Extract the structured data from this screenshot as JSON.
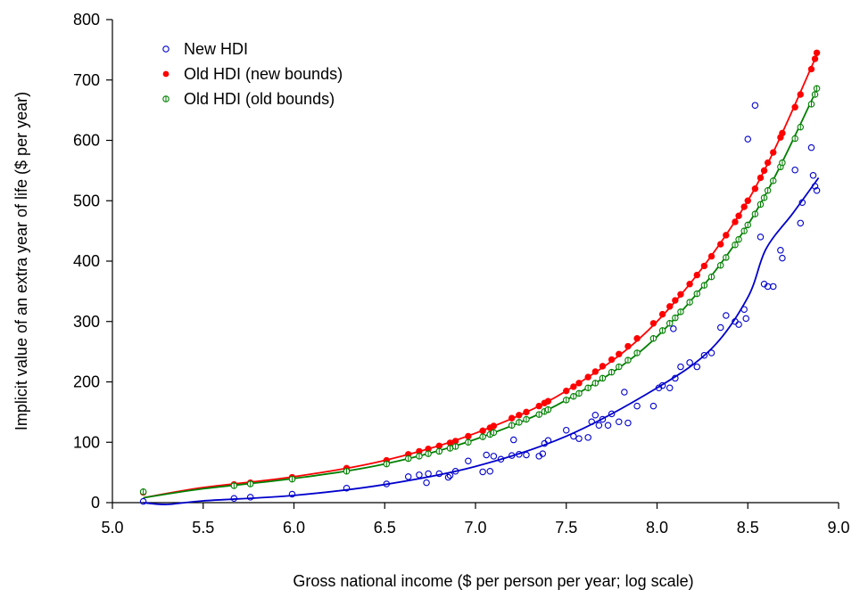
{
  "chart_data": {
    "type": "scatter",
    "title": "",
    "xlabel": "Gross national income ($ per person per year; log scale)",
    "ylabel": "Implicit value of an extra year of life ($ per year)",
    "xlim": [
      5.0,
      9.0
    ],
    "ylim": [
      0,
      800
    ],
    "xticks": [
      "5.0",
      "5.5",
      "6.0",
      "6.5",
      "7.0",
      "7.5",
      "8.0",
      "8.5",
      "9.0"
    ],
    "yticks": [
      "0",
      "100",
      "200",
      "300",
      "400",
      "500",
      "600",
      "700",
      "800"
    ],
    "grid": false,
    "legend_position": "top-left",
    "series": [
      {
        "name": "New HDI",
        "color": "#0000cc",
        "marker": "open-circle",
        "points": [
          [
            5.17,
            2
          ],
          [
            5.67,
            7
          ],
          [
            5.76,
            9
          ],
          [
            5.99,
            14
          ],
          [
            6.29,
            24
          ],
          [
            6.51,
            31
          ],
          [
            6.63,
            43
          ],
          [
            6.69,
            46
          ],
          [
            6.73,
            33
          ],
          [
            6.74,
            48
          ],
          [
            6.8,
            48
          ],
          [
            6.85,
            42
          ],
          [
            6.86,
            45
          ],
          [
            6.89,
            52
          ],
          [
            6.96,
            69
          ],
          [
            7.04,
            51
          ],
          [
            7.06,
            79
          ],
          [
            7.08,
            52
          ],
          [
            7.1,
            77
          ],
          [
            7.14,
            72
          ],
          [
            7.2,
            78
          ],
          [
            7.21,
            104
          ],
          [
            7.24,
            80
          ],
          [
            7.28,
            79
          ],
          [
            7.35,
            77
          ],
          [
            7.37,
            81
          ],
          [
            7.38,
            98
          ],
          [
            7.4,
            103
          ],
          [
            7.5,
            120
          ],
          [
            7.54,
            110
          ],
          [
            7.57,
            106
          ],
          [
            7.62,
            108
          ],
          [
            7.64,
            134
          ],
          [
            7.66,
            145
          ],
          [
            7.68,
            128
          ],
          [
            7.7,
            138
          ],
          [
            7.73,
            128
          ],
          [
            7.75,
            147
          ],
          [
            7.79,
            134
          ],
          [
            7.82,
            183
          ],
          [
            7.84,
            132
          ],
          [
            7.89,
            160
          ],
          [
            7.98,
            160
          ],
          [
            8.01,
            190
          ],
          [
            8.03,
            194
          ],
          [
            8.07,
            190
          ],
          [
            8.09,
            288
          ],
          [
            8.1,
            206
          ],
          [
            8.13,
            225
          ],
          [
            8.18,
            232
          ],
          [
            8.22,
            225
          ],
          [
            8.26,
            244
          ],
          [
            8.3,
            248
          ],
          [
            8.35,
            290
          ],
          [
            8.38,
            310
          ],
          [
            8.43,
            300
          ],
          [
            8.45,
            295
          ],
          [
            8.48,
            320
          ],
          [
            8.49,
            305
          ],
          [
            8.5,
            602
          ],
          [
            8.54,
            658
          ],
          [
            8.57,
            440
          ],
          [
            8.59,
            362
          ],
          [
            8.61,
            358
          ],
          [
            8.64,
            358
          ],
          [
            8.68,
            418
          ],
          [
            8.69,
            405
          ],
          [
            8.76,
            551
          ],
          [
            8.79,
            463
          ],
          [
            8.8,
            497
          ],
          [
            8.85,
            588
          ],
          [
            8.86,
            542
          ],
          [
            8.87,
            524
          ],
          [
            8.88,
            517
          ]
        ],
        "fit": [
          [
            5.17,
            0
          ],
          [
            5.3,
            -3
          ],
          [
            5.5,
            3
          ],
          [
            6.0,
            12
          ],
          [
            6.5,
            30
          ],
          [
            7.0,
            60
          ],
          [
            7.5,
            110
          ],
          [
            8.0,
            190
          ],
          [
            8.3,
            255
          ],
          [
            8.5,
            340
          ],
          [
            8.6,
            420
          ],
          [
            8.75,
            480
          ],
          [
            8.89,
            538
          ]
        ]
      },
      {
        "name": "Old HDI (new bounds)",
        "color": "#ff0000",
        "marker": "filled-circle",
        "points": [
          [
            5.17,
            17
          ],
          [
            5.67,
            30
          ],
          [
            5.76,
            33
          ],
          [
            5.99,
            42
          ],
          [
            6.29,
            57
          ],
          [
            6.51,
            70
          ],
          [
            6.63,
            80
          ],
          [
            6.69,
            85
          ],
          [
            6.74,
            89
          ],
          [
            6.8,
            94
          ],
          [
            6.86,
            99
          ],
          [
            6.89,
            102
          ],
          [
            6.96,
            110
          ],
          [
            7.04,
            119
          ],
          [
            7.08,
            124
          ],
          [
            7.1,
            127
          ],
          [
            7.2,
            140
          ],
          [
            7.24,
            145
          ],
          [
            7.28,
            150
          ],
          [
            7.35,
            160
          ],
          [
            7.38,
            165
          ],
          [
            7.4,
            168
          ],
          [
            7.5,
            185
          ],
          [
            7.54,
            192
          ],
          [
            7.57,
            198
          ],
          [
            7.62,
            208
          ],
          [
            7.66,
            217
          ],
          [
            7.7,
            226
          ],
          [
            7.75,
            237
          ],
          [
            7.79,
            246
          ],
          [
            7.84,
            259
          ],
          [
            7.89,
            272
          ],
          [
            7.98,
            297
          ],
          [
            8.03,
            312
          ],
          [
            8.07,
            325
          ],
          [
            8.1,
            335
          ],
          [
            8.13,
            345
          ],
          [
            8.18,
            362
          ],
          [
            8.22,
            377
          ],
          [
            8.26,
            392
          ],
          [
            8.3,
            408
          ],
          [
            8.35,
            428
          ],
          [
            8.38,
            443
          ],
          [
            8.43,
            465
          ],
          [
            8.45,
            475
          ],
          [
            8.48,
            490
          ],
          [
            8.5,
            500
          ],
          [
            8.54,
            520
          ],
          [
            8.57,
            538
          ],
          [
            8.59,
            550
          ],
          [
            8.61,
            563
          ],
          [
            8.64,
            580
          ],
          [
            8.68,
            605
          ],
          [
            8.69,
            612
          ],
          [
            8.76,
            655
          ],
          [
            8.79,
            676
          ],
          [
            8.85,
            718
          ],
          [
            8.87,
            735
          ],
          [
            8.88,
            745
          ]
        ],
        "fit": [
          [
            5.17,
            8
          ],
          [
            5.5,
            25
          ],
          [
            6.0,
            43
          ],
          [
            6.5,
            70
          ],
          [
            7.0,
            115
          ],
          [
            7.5,
            185
          ],
          [
            8.0,
            300
          ],
          [
            8.5,
            500
          ],
          [
            8.89,
            748
          ]
        ]
      },
      {
        "name": "Old HDI (old bounds)",
        "color": "#008000",
        "marker": "circle-with-bar",
        "points": [
          [
            5.17,
            18
          ],
          [
            5.67,
            28
          ],
          [
            5.76,
            31
          ],
          [
            5.99,
            39
          ],
          [
            6.29,
            52
          ],
          [
            6.51,
            64
          ],
          [
            6.63,
            73
          ],
          [
            6.69,
            77
          ],
          [
            6.74,
            81
          ],
          [
            6.8,
            85
          ],
          [
            6.86,
            90
          ],
          [
            6.89,
            93
          ],
          [
            6.96,
            100
          ],
          [
            7.04,
            109
          ],
          [
            7.08,
            113
          ],
          [
            7.1,
            116
          ],
          [
            7.2,
            128
          ],
          [
            7.24,
            133
          ],
          [
            7.28,
            138
          ],
          [
            7.35,
            146
          ],
          [
            7.38,
            151
          ],
          [
            7.4,
            154
          ],
          [
            7.5,
            170
          ],
          [
            7.54,
            176
          ],
          [
            7.57,
            181
          ],
          [
            7.62,
            190
          ],
          [
            7.66,
            198
          ],
          [
            7.7,
            206
          ],
          [
            7.75,
            216
          ],
          [
            7.79,
            225
          ],
          [
            7.84,
            236
          ],
          [
            7.89,
            248
          ],
          [
            7.98,
            272
          ],
          [
            8.03,
            285
          ],
          [
            8.07,
            297
          ],
          [
            8.1,
            306
          ],
          [
            8.13,
            316
          ],
          [
            8.18,
            332
          ],
          [
            8.22,
            346
          ],
          [
            8.26,
            360
          ],
          [
            8.3,
            374
          ],
          [
            8.35,
            393
          ],
          [
            8.38,
            406
          ],
          [
            8.43,
            427
          ],
          [
            8.45,
            436
          ],
          [
            8.48,
            450
          ],
          [
            8.5,
            460
          ],
          [
            8.54,
            478
          ],
          [
            8.57,
            494
          ],
          [
            8.59,
            505
          ],
          [
            8.61,
            517
          ],
          [
            8.64,
            533
          ],
          [
            8.68,
            556
          ],
          [
            8.69,
            563
          ],
          [
            8.76,
            603
          ],
          [
            8.79,
            622
          ],
          [
            8.85,
            660
          ],
          [
            8.87,
            676
          ],
          [
            8.88,
            686
          ]
        ],
        "fit": [
          [
            5.17,
            8
          ],
          [
            5.5,
            23
          ],
          [
            6.0,
            40
          ],
          [
            6.5,
            64
          ],
          [
            7.0,
            105
          ],
          [
            7.5,
            170
          ],
          [
            8.0,
            275
          ],
          [
            8.5,
            460
          ],
          [
            8.89,
            690
          ]
        ]
      }
    ]
  }
}
